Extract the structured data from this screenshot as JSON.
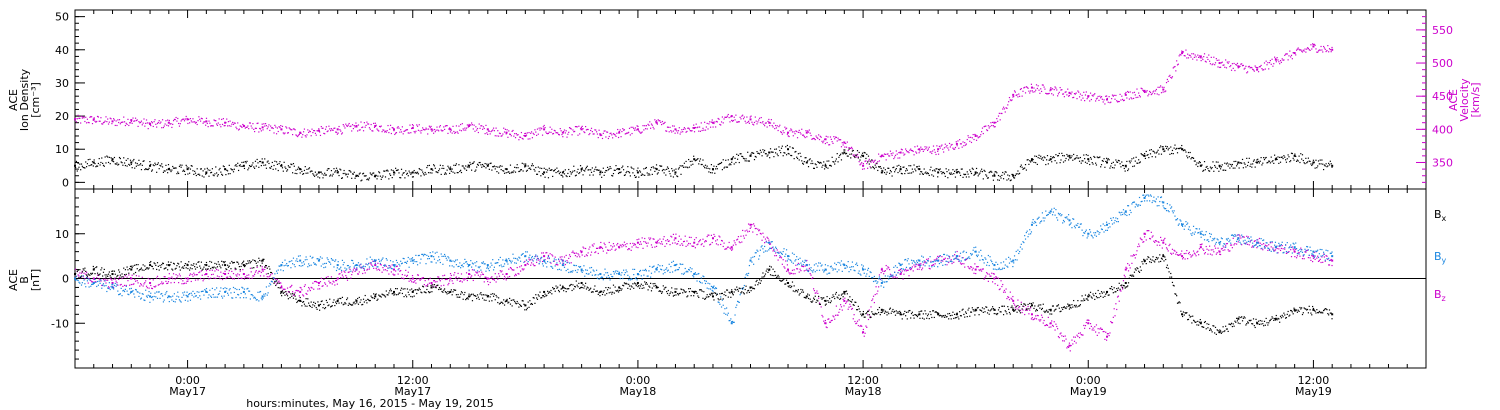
{
  "colors": {
    "black": "#000000",
    "blue": "#1a86e0",
    "magenta": "#cc00cc"
  },
  "xaxis": {
    "title": "hours:minutes, May 16, 2015 - May 19, 2015",
    "range_hours_from_may16_0000": [
      18,
      90
    ],
    "ticks": [
      {
        "time": "0:00",
        "date": "May17",
        "hour": 24
      },
      {
        "time": "12:00",
        "date": "May17",
        "hour": 36
      },
      {
        "time": "0:00",
        "date": "May18",
        "hour": 48
      },
      {
        "time": "12:00",
        "date": "May18",
        "hour": 60
      },
      {
        "time": "0:00",
        "date": "May19",
        "hour": 72
      },
      {
        "time": "12:00",
        "date": "May19",
        "hour": 84
      }
    ]
  },
  "chart_data": [
    {
      "type": "scatter",
      "panel": "top",
      "ylabel_left": [
        "ACE",
        "Ion Density",
        "[cm⁻³]"
      ],
      "ylabel_right": [
        "ACE",
        "Velocity",
        "[km/s]"
      ],
      "ylim_left": [
        -2,
        52
      ],
      "ylim_right": [
        310,
        580
      ],
      "yticks_left": [
        "0",
        "10",
        "20",
        "30",
        "40",
        "50"
      ],
      "yticks_right": [
        "350",
        "400",
        "450",
        "500",
        "550"
      ],
      "series": [
        {
          "name": "Ion Density",
          "axis": "left",
          "color": "#000000",
          "x": [
            18,
            19,
            20,
            21,
            22,
            23,
            24,
            25,
            26,
            27,
            28,
            29,
            30,
            31,
            32,
            33,
            34,
            35,
            36,
            37,
            38,
            39,
            40,
            41,
            42,
            43,
            44,
            45,
            46,
            47,
            48,
            49,
            50,
            51,
            52,
            53,
            54,
            55,
            56,
            57,
            58,
            59,
            60,
            61,
            62,
            63,
            64,
            65,
            66,
            67,
            68,
            69,
            70,
            71,
            72,
            73,
            74,
            75,
            76,
            77,
            78,
            79,
            80,
            81,
            82,
            83,
            84,
            85
          ],
          "y": [
            5,
            6,
            7,
            6,
            5,
            4,
            4,
            3,
            4,
            5,
            6,
            5,
            4,
            3,
            3,
            2,
            2,
            3,
            3,
            4,
            4,
            5,
            5,
            4,
            5,
            3,
            3,
            4,
            3,
            4,
            3,
            4,
            3,
            7,
            4,
            7,
            8,
            9,
            10,
            6,
            5,
            9,
            8,
            3,
            4,
            4,
            3,
            3,
            3,
            2,
            2,
            7,
            7,
            8,
            7,
            6,
            5,
            8,
            10,
            10,
            5,
            5,
            6,
            6,
            7,
            8,
            6,
            5
          ]
        },
        {
          "name": "Velocity",
          "axis": "right",
          "color": "#cc00cc",
          "x": [
            18,
            19,
            20,
            21,
            22,
            23,
            24,
            25,
            26,
            27,
            28,
            29,
            30,
            31,
            32,
            33,
            34,
            35,
            36,
            37,
            38,
            39,
            40,
            41,
            42,
            43,
            44,
            45,
            46,
            47,
            48,
            49,
            50,
            51,
            52,
            53,
            54,
            55,
            56,
            57,
            58,
            59,
            60,
            61,
            62,
            63,
            64,
            65,
            66,
            67,
            68,
            69,
            70,
            71,
            72,
            73,
            74,
            75,
            76,
            77,
            78,
            79,
            80,
            81,
            82,
            83,
            84,
            85
          ],
          "y": [
            415,
            415,
            412,
            414,
            408,
            410,
            415,
            412,
            410,
            405,
            403,
            400,
            395,
            398,
            400,
            405,
            405,
            400,
            402,
            400,
            400,
            405,
            400,
            395,
            390,
            400,
            395,
            400,
            392,
            395,
            400,
            410,
            400,
            402,
            410,
            420,
            415,
            410,
            395,
            395,
            385,
            380,
            345,
            360,
            365,
            370,
            370,
            378,
            390,
            410,
            452,
            463,
            460,
            455,
            450,
            445,
            452,
            458,
            460,
            515,
            510,
            500,
            495,
            490,
            505,
            515,
            525,
            520
          ]
        }
      ]
    },
    {
      "type": "scatter",
      "panel": "bottom",
      "ylabel_left": [
        "ACE",
        "B",
        "[nT]"
      ],
      "ylim": [
        -20,
        20
      ],
      "yticks": [
        "-10",
        "0",
        "10"
      ],
      "series": [
        {
          "name": "Bx",
          "color": "#000000",
          "x": [
            18,
            19,
            20,
            21,
            22,
            23,
            24,
            25,
            26,
            27,
            28,
            29,
            30,
            31,
            32,
            33,
            34,
            35,
            36,
            37,
            38,
            39,
            40,
            41,
            42,
            43,
            44,
            45,
            46,
            47,
            48,
            49,
            50,
            51,
            52,
            53,
            54,
            55,
            56,
            57,
            58,
            59,
            60,
            61,
            62,
            63,
            64,
            65,
            66,
            67,
            68,
            69,
            70,
            71,
            72,
            73,
            74,
            75,
            76,
            77,
            78,
            79,
            80,
            81,
            82,
            83,
            84,
            85
          ],
          "y": [
            1,
            2,
            1,
            2,
            3,
            3,
            3,
            3,
            3,
            3,
            4,
            -3,
            -5,
            -6,
            -5,
            -5,
            -4,
            -3,
            -3,
            -2,
            -3,
            -4,
            -4,
            -5,
            -6,
            -3,
            -2,
            -1,
            -3,
            -2,
            -1,
            -2,
            -3,
            -3,
            -4,
            -3,
            -2,
            2,
            -1,
            -4,
            -5,
            -3,
            -8,
            -7,
            -8,
            -8,
            -8,
            -8,
            -7,
            -7,
            -7,
            -6,
            -7,
            -6,
            -4,
            -3,
            -1,
            4,
            5,
            -8,
            -10,
            -12,
            -9,
            -10,
            -9,
            -7,
            -7,
            -8
          ]
        },
        {
          "name": "By",
          "color": "#1a86e0",
          "x": [
            18,
            19,
            20,
            21,
            22,
            23,
            24,
            25,
            26,
            27,
            28,
            29,
            30,
            31,
            32,
            33,
            34,
            35,
            36,
            37,
            38,
            39,
            40,
            41,
            42,
            43,
            44,
            45,
            46,
            47,
            48,
            49,
            50,
            51,
            52,
            53,
            54,
            55,
            56,
            57,
            58,
            59,
            60,
            61,
            62,
            63,
            64,
            65,
            66,
            67,
            68,
            69,
            70,
            71,
            72,
            73,
            74,
            75,
            76,
            77,
            78,
            79,
            80,
            81,
            82,
            83,
            84,
            85
          ],
          "y": [
            0,
            -1,
            -2,
            -3,
            -4,
            -4,
            -4,
            -3,
            -3,
            -3,
            -4,
            3,
            4,
            4,
            3,
            3,
            4,
            3,
            4,
            5,
            4,
            3,
            3,
            4,
            5,
            4,
            3,
            2,
            1,
            1,
            1,
            2,
            3,
            1,
            -2,
            -10,
            4,
            8,
            5,
            3,
            2,
            3,
            2,
            -1,
            3,
            4,
            4,
            5,
            6,
            3,
            4,
            12,
            15,
            13,
            10,
            12,
            15,
            18,
            17,
            12,
            10,
            8,
            9,
            8,
            7,
            7,
            6,
            5
          ]
        },
        {
          "name": "Bz",
          "color": "#cc00cc",
          "x": [
            18,
            19,
            20,
            21,
            22,
            23,
            24,
            25,
            26,
            27,
            28,
            29,
            30,
            31,
            32,
            33,
            34,
            35,
            36,
            37,
            38,
            39,
            40,
            41,
            42,
            43,
            44,
            45,
            46,
            47,
            48,
            49,
            50,
            51,
            52,
            53,
            54,
            55,
            56,
            57,
            58,
            59,
            60,
            61,
            62,
            63,
            64,
            65,
            66,
            67,
            68,
            69,
            70,
            71,
            72,
            73,
            74,
            75,
            76,
            77,
            78,
            79,
            80,
            81,
            82,
            83,
            84,
            85
          ],
          "y": [
            1,
            0,
            -1,
            0,
            -1,
            0,
            0,
            1,
            1,
            1,
            2,
            -2,
            -3,
            -1,
            0,
            2,
            3,
            2,
            0,
            -1,
            0,
            1,
            0,
            1,
            3,
            5,
            4,
            6,
            7,
            7,
            8,
            8,
            9,
            8,
            9,
            7,
            12,
            8,
            2,
            3,
            -10,
            -5,
            -12,
            2,
            1,
            3,
            4,
            5,
            2,
            0,
            -5,
            -8,
            -10,
            -15,
            -10,
            -13,
            2,
            10,
            8,
            5,
            7,
            6,
            9,
            8,
            7,
            6,
            5,
            4
          ]
        }
      ],
      "legend": [
        "Bx",
        "By",
        "Bz"
      ]
    }
  ]
}
